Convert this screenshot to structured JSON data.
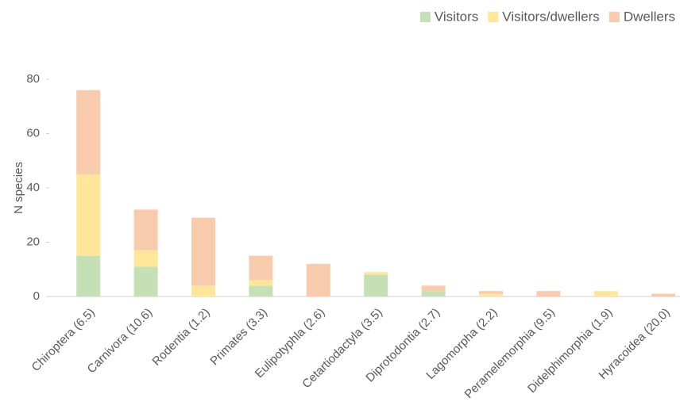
{
  "chart_data": {
    "type": "stacked_bar",
    "y_label": "N species",
    "categories": [
      "Chiroptera (6.5)",
      "Carnivora (10.6)",
      "Rodentia (1.2)",
      "Primates (3.3)",
      "Eulipotyphla  (2.6)",
      "Cetartiodactyla (3.5)",
      "Diprotodontia  (2.7)",
      "Lagomorpha  (2.2)",
      "Peramelemorphia  (9.5)",
      "Didelphimorphia  (1.9)",
      "Hyracoidea (20.0)"
    ],
    "series": [
      {
        "name": "Visitors",
        "color": "#c5e0b4",
        "values": [
          15,
          11,
          0,
          4,
          0,
          8,
          2,
          0,
          0,
          0,
          0
        ]
      },
      {
        "name": "Visitors/dwellers",
        "color": "#ffe699",
        "values": [
          30,
          6,
          4,
          2,
          0,
          1,
          0,
          1,
          0,
          2,
          0
        ]
      },
      {
        "name": "Dwellers",
        "color": "#f8cbad",
        "values": [
          31,
          15,
          25,
          9,
          12,
          0,
          2,
          1,
          2,
          0,
          1
        ]
      }
    ],
    "ylim": [
      0,
      80
    ],
    "yticks": [
      0,
      20,
      40,
      60,
      80
    ],
    "legend": "top-right"
  }
}
